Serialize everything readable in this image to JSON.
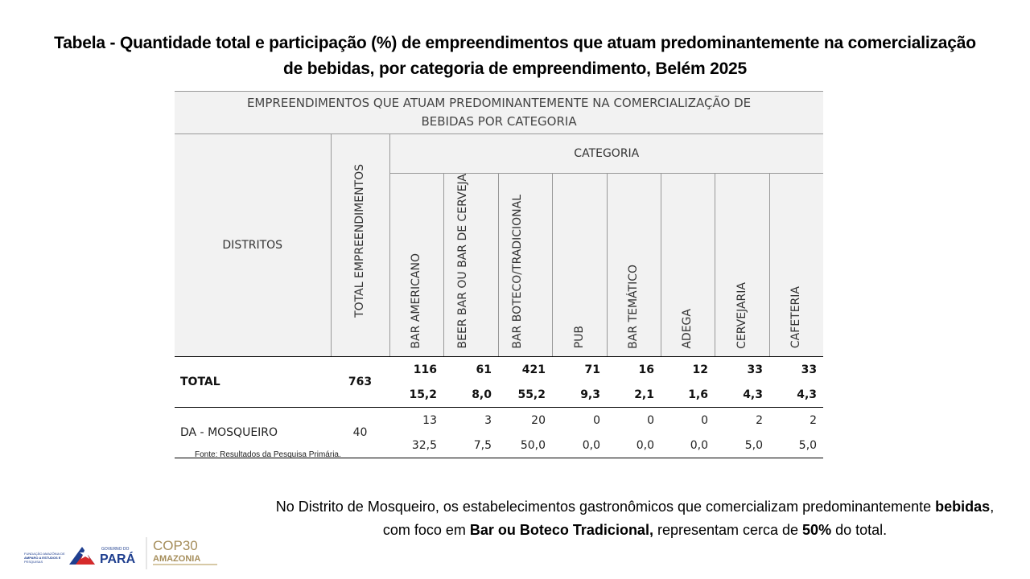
{
  "title": "Tabela -  Quantidade total e participação (%) de empreendimentos que atuam predominantemente na comercialização de bebidas, por categoria de empreendimento, Belém 2025",
  "table": {
    "banner_line1": "EMPREENDIMENTOS QUE ATUAM PREDOMINANTEMENTE NA COMERCIALIZAÇÃO DE",
    "banner_line2": "BEBIDAS POR CATEGORIA",
    "col_distritos": "DISTRITOS",
    "col_total": "TOTAL EMPREENDIMENTOS",
    "col_categoria": "CATEGORIA",
    "categories": [
      "BAR AMERICANO",
      "BEER BAR OU BAR DE CERVEJA",
      "BAR BOTECO/TRADICIONAL",
      "PUB",
      "BAR TEMÁTICO",
      "ADEGA",
      "CERVEJARIA",
      "CAFETERIA"
    ],
    "rows": [
      {
        "label": "TOTAL",
        "total": "763",
        "counts": [
          "116",
          "61",
          "421",
          "71",
          "16",
          "12",
          "33",
          "33"
        ],
        "percents": [
          "15,2",
          "8,0",
          "55,2",
          "9,3",
          "2,1",
          "1,6",
          "4,3",
          "4,3"
        ]
      },
      {
        "label": "DA - MOSQUEIRO",
        "total": "40",
        "counts": [
          "13",
          "3",
          "20",
          "0",
          "0",
          "0",
          "2",
          "2"
        ],
        "percents": [
          "32,5",
          "7,5",
          "50,0",
          "0,0",
          "0,0",
          "0,0",
          "5,0",
          "5,0"
        ]
      }
    ]
  },
  "source": "Fonte: Resultados da Pesquisa Primária.",
  "note": {
    "part1": "No Distrito de Mosqueiro, os estabelecimentos gastronômicos que comercializam predominantemente ",
    "bold1": "bebidas",
    "part2": ", com foco em ",
    "bold2": "Bar ou Boteco Tradicional,",
    "part3": " representam cerca de ",
    "bold3": "50%",
    "part4": " do total."
  },
  "logos": {
    "fapespa_line1": "FUNDAÇÃO AMAZÔNIA DE",
    "fapespa_line2": "AMPARO A ESTUDOS E",
    "fapespa_line3": "PESQUISAS",
    "gov_small": "GOVERNO DO",
    "gov_big": "PARÁ",
    "cop_top": "COP30",
    "cop_bottom": "AMAZONIA",
    "colors": {
      "blue": "#1f3f8f",
      "red": "#d62a2a",
      "cop": "#a58d5a"
    }
  }
}
